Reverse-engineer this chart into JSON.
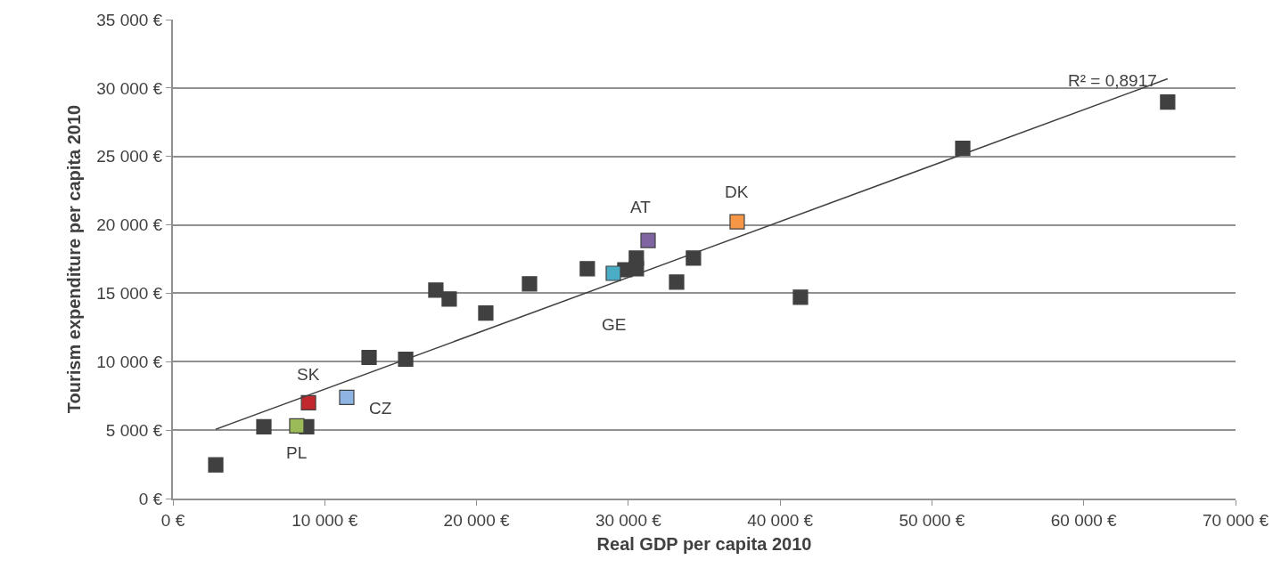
{
  "chart_data": {
    "type": "scatter",
    "xlabel": "Real GDP per capita 2010",
    "ylabel": "Tourism expenditure per capita 2010",
    "series": [
      {
        "color": "#404040",
        "x": [
          2820,
          5990,
          8810,
          12920,
          15330,
          17320,
          18200,
          20610,
          23490,
          27300,
          29770,
          30530,
          30530,
          33180,
          34290,
          41340,
          52030,
          65530
        ],
        "values": [
          2460,
          5250,
          5250,
          10310,
          10180,
          15230,
          14580,
          13550,
          15690,
          16790,
          16720,
          16790,
          17570,
          15820,
          17570,
          14710,
          25600,
          28970
        ]
      },
      {
        "name": "PL",
        "color": "#9bbb59",
        "x": [
          8160
        ],
        "values": [
          5310
        ]
      },
      {
        "name": "SK",
        "color": "#c0282d",
        "x": [
          8930
        ],
        "values": [
          7000
        ]
      },
      {
        "name": "CZ",
        "color": "#8db4e2",
        "x": [
          11450
        ],
        "values": [
          7390
        ]
      },
      {
        "name": "GE",
        "color": "#4bacc6",
        "x": [
          29010
        ],
        "values": [
          16460
        ]
      },
      {
        "name": "AT",
        "color": "#8064a2",
        "x": [
          31300
        ],
        "values": [
          18860
        ]
      },
      {
        "name": "DK",
        "color": "#f79646",
        "x": [
          37170
        ],
        "values": [
          20220
        ]
      },
      {
        "type": "line",
        "marker": "none",
        "color": "#404040",
        "x": [
          2820,
          65530
        ],
        "values": [
          5060,
          30670
        ]
      }
    ],
    "annotations": [
      "R² = 0,8917"
    ],
    "marker": "square",
    "grid": "y",
    "legend": false,
    "xlim": [
      0,
      70000
    ],
    "ylim": [
      0,
      35000
    ],
    "xticks": [
      {
        "value": 0,
        "label": "0 €"
      },
      {
        "value": 10000,
        "label": "10 000 €"
      },
      {
        "value": 20000,
        "label": "20 000 €"
      },
      {
        "value": 30000,
        "label": "30 000 €"
      },
      {
        "value": 40000,
        "label": "40 000 €"
      },
      {
        "value": 50000,
        "label": "50 000 €"
      },
      {
        "value": 60000,
        "label": "60 000 €"
      },
      {
        "value": 70000,
        "label": "70 000 €"
      }
    ],
    "yticks": [
      {
        "value": 0,
        "label": "0 €"
      },
      {
        "value": 5000,
        "label": "5 000 €"
      },
      {
        "value": 10000,
        "label": "10 000 €"
      },
      {
        "value": 15000,
        "label": "15 000 €"
      },
      {
        "value": 20000,
        "label": "20 000 €"
      },
      {
        "value": 25000,
        "label": "25 000 €"
      },
      {
        "value": 30000,
        "label": "30 000 €"
      },
      {
        "value": 35000,
        "label": "35 000 €"
      }
    ]
  }
}
